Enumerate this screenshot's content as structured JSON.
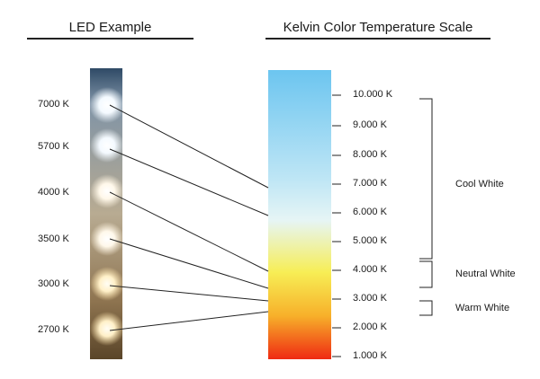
{
  "headings": {
    "led_example": "LED Example",
    "kelvin_scale": "Kelvin Color Temperature Scale"
  },
  "led_labels": [
    "7000 K",
    "5700 K",
    "4000 K",
    "3500 K",
    "3000 K",
    "2700 K"
  ],
  "scale_labels": [
    "10.000 K",
    "9.000 K",
    "8.000 K",
    "7.000 K",
    "6.000 K",
    "5.000 K",
    "4.000 K",
    "3.000 K",
    "2.000 K",
    "1.000 K"
  ],
  "groups": {
    "cool": "Cool White",
    "neutral": "Neutral White",
    "warm": "Warm White"
  },
  "colors": {
    "scale_top": "#6cc5f0",
    "scale_mid": "#e0f4f8",
    "scale_yellow": "#f6ea40",
    "scale_orange": "#f7a62a",
    "scale_bottom": "#ef2e14"
  }
}
